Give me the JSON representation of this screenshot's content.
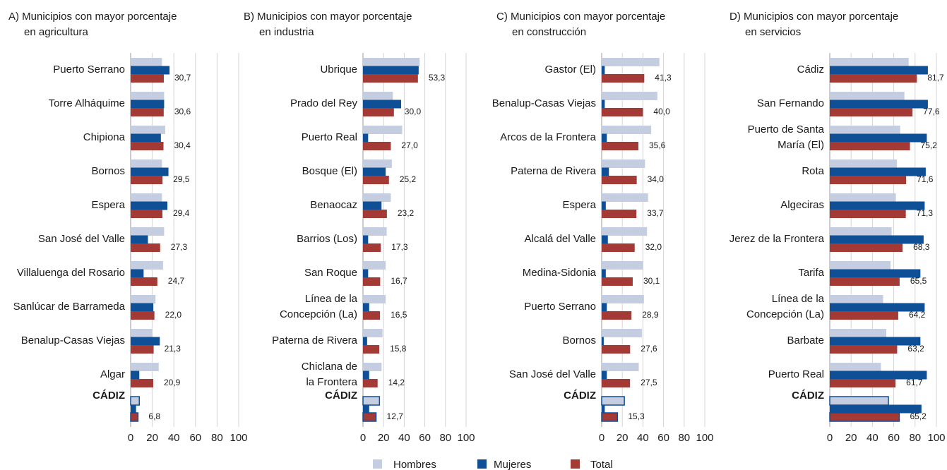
{
  "chart_data": {
    "type": "bar",
    "orientation": "horizontal",
    "series": [
      {
        "name": "Hombres",
        "color": "#c5cde0"
      },
      {
        "name": "Mujeres",
        "color": "#0e4f96"
      },
      {
        "name": "Total",
        "color": "#a33a35"
      }
    ],
    "panels": [
      {
        "title": [
          "A) Municipios con mayor porcentaje",
          "en agricultura"
        ],
        "categories": [
          "Puerto Serrano",
          "Torre Alháquime",
          "Chipiona",
          "Bornos",
          "Espera",
          "San José del Valle",
          "Villaluenga del Rosario",
          "Sanlúcar de Barrameda",
          "Benalup-Casas Viejas",
          "Algar",
          "CÁDIZ"
        ],
        "values": [
          [
            29,
            31,
            32,
            29,
            29,
            31,
            30,
            23,
            20,
            26,
            8
          ],
          [
            36,
            31,
            28,
            35,
            34,
            16,
            12,
            21,
            27,
            8,
            5
          ],
          [
            30.7,
            30.6,
            30.4,
            29.5,
            29.4,
            27.3,
            24.7,
            22.0,
            21.3,
            20.9,
            6.8
          ]
        ],
        "value_labels": [
          "30,7",
          "30,6",
          "30,4",
          "29,5",
          "29,4",
          "27,3",
          "24,7",
          "22,0",
          "21,3",
          "20,9",
          "6,8"
        ],
        "xlim": [
          0,
          100
        ],
        "xticks": [
          0,
          20,
          40,
          60,
          80,
          100
        ]
      },
      {
        "title": [
          "B) Municipios con mayor porcentaje",
          "en industria"
        ],
        "categories": [
          "Ubrique",
          "Prado del Rey",
          "Puerto Real",
          "Bosque (El)",
          "Benaocaz",
          "Barrios (Los)",
          "San Roque",
          [
            "Línea de la",
            "Concepción (La)"
          ],
          "Paterna de Rivera",
          [
            "Chiclana de",
            "la Frontera"
          ],
          "CÁDIZ"
        ],
        "values": [
          [
            55,
            29,
            38,
            28,
            27,
            23,
            22,
            22,
            19,
            18,
            16
          ],
          [
            54,
            37,
            5,
            22,
            18,
            5,
            5,
            6,
            4,
            6,
            6
          ],
          [
            53.3,
            30.0,
            27.0,
            25.2,
            23.2,
            17.3,
            16.7,
            16.5,
            15.8,
            14.2,
            12.7
          ]
        ],
        "value_labels": [
          "53,3",
          "30,0",
          "27,0",
          "25,2",
          "23,2",
          "17,3",
          "16,7",
          "16,5",
          "15,8",
          "14,2",
          "12,7"
        ],
        "xlim": [
          0,
          100
        ],
        "xticks": [
          0,
          20,
          40,
          60,
          80,
          100
        ]
      },
      {
        "title": [
          "C) Municipios con mayor porcentaje",
          "en construcción"
        ],
        "categories": [
          "Gastor (El)",
          "Benalup-Casas Viejas",
          "Arcos de la Frontera",
          "Paterna de Rivera",
          "Espera",
          "Alcalá del Valle",
          "Medina-Sidonia",
          "Puerto Serrano",
          "Bornos",
          "San José del Valle",
          "CÁDIZ"
        ],
        "values": [
          [
            56,
            54,
            48,
            42,
            45,
            44,
            40,
            41,
            39,
            36,
            22
          ],
          [
            3,
            3,
            5,
            7,
            4,
            6,
            4,
            5,
            2,
            5,
            3
          ],
          [
            41.3,
            40.0,
            35.6,
            34.0,
            33.7,
            32.0,
            30.1,
            28.9,
            27.6,
            27.5,
            15.3
          ]
        ],
        "value_labels": [
          "41,3",
          "40,0",
          "35,6",
          "34,0",
          "33,7",
          "32,0",
          "30,1",
          "28,9",
          "27,6",
          "27,5",
          "15,3"
        ],
        "xlim": [
          0,
          100
        ],
        "xticks": [
          0,
          20,
          40,
          60,
          80,
          100
        ]
      },
      {
        "title": [
          "D) Municipios con mayor porcentaje",
          "en servicios"
        ],
        "categories": [
          "Cádiz",
          "San Fernando",
          [
            "Puerto de Santa",
            "María (El)"
          ],
          "Rota",
          "Algeciras",
          "Jerez de la Frontera",
          "Tarifa",
          [
            "Línea de la",
            "Concepción (La)"
          ],
          "Barbate",
          "Puerto Real",
          "CÁDIZ"
        ],
        "values": [
          [
            74,
            70,
            66,
            63,
            62,
            58,
            57,
            50,
            53,
            48,
            55
          ],
          [
            92,
            92,
            91,
            90,
            89,
            88,
            85,
            89,
            85,
            91,
            86
          ],
          [
            81.7,
            77.6,
            75.2,
            71.6,
            71.3,
            68.3,
            65.5,
            64.2,
            63.2,
            61.7,
            65.2
          ]
        ],
        "value_labels": [
          "81,7",
          "77,6",
          "75,2",
          "71,6",
          "71,3",
          "68,3",
          "65,5",
          "64,2",
          "63,2",
          "61,7",
          "65,2"
        ],
        "xlim": [
          0,
          100
        ],
        "xticks": [
          0,
          20,
          40,
          60,
          80,
          100
        ]
      }
    ]
  }
}
